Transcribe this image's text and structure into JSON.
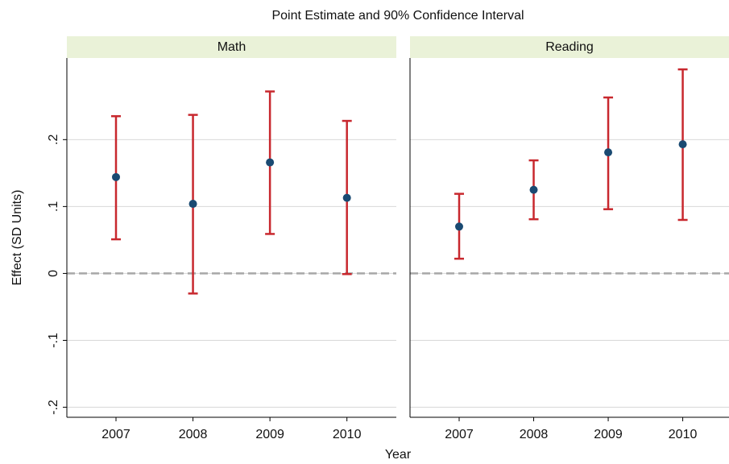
{
  "chart_data": {
    "type": "errorbar",
    "title": "Point Estimate and 90% Confidence Interval",
    "x_label": "Year",
    "y_label": "Effect (SD Units)",
    "ylim": [
      -0.215,
      0.322
    ],
    "yticks": [
      {
        "value": -0.2,
        "label": "-.2"
      },
      {
        "value": -0.1,
        "label": "-.1"
      },
      0,
      {
        "value": 0.1,
        "label": ".1"
      },
      {
        "value": 0.2,
        "label": ".2"
      }
    ],
    "grid": true,
    "reference_line": 0,
    "point_color": "#1a4a72",
    "bar_color": "#c8282e",
    "strip_color": "#eaf2d8",
    "panels": [
      {
        "title": "Math",
        "categories": [
          "2007",
          "2008",
          "2009",
          "2010"
        ],
        "values": [
          0.144,
          0.104,
          0.166,
          0.113
        ],
        "lower": [
          0.051,
          -0.03,
          0.059,
          -0.001
        ],
        "upper": [
          0.235,
          0.237,
          0.272,
          0.228
        ]
      },
      {
        "title": "Reading",
        "categories": [
          "2007",
          "2008",
          "2009",
          "2010"
        ],
        "values": [
          0.07,
          0.125,
          0.181,
          0.193
        ],
        "lower": [
          0.022,
          0.081,
          0.096,
          0.08
        ],
        "upper": [
          0.119,
          0.169,
          0.263,
          0.305
        ]
      }
    ]
  }
}
